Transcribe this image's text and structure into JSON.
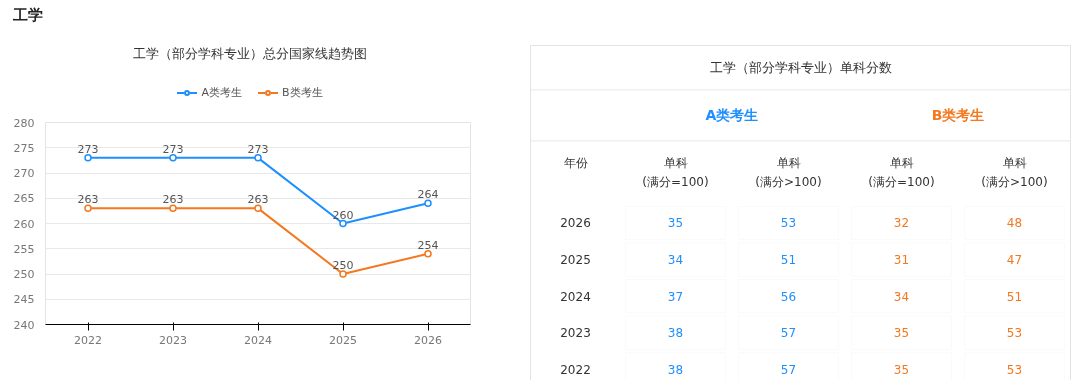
{
  "chart_data": [
    {
      "type": "other",
      "title": "工学"
    },
    {
      "type": "line",
      "title": "工学（部分学科专业）总分国家线趋势图",
      "categories": [
        "2022",
        "2023",
        "2024",
        "2025",
        "2026"
      ],
      "series": [
        {
          "name": "A类考生",
          "color": "#1e8fff",
          "values": [
            273,
            273,
            273,
            260,
            264
          ]
        },
        {
          "name": "B类考生",
          "color": "#f5781f",
          "values": [
            263,
            263,
            263,
            250,
            254
          ]
        }
      ],
      "ylim": [
        240,
        280
      ],
      "yticks": [
        240,
        245,
        250,
        255,
        260,
        265,
        270,
        275,
        280
      ],
      "grid": "y",
      "legend": "top",
      "marker": "circle",
      "line_style": "solid",
      "data_labels": true
    },
    {
      "type": "heatmap",
      "title": "工学（部分学科专业）单科分数",
      "ylabel": "年份",
      "annotations": [
        "A类考生",
        "B类考生"
      ],
      "categories": [
        "单科\n(满分=100)",
        "单科\n(满分>100)",
        "单科\n(满分=100)",
        "单科\n(满分>100)"
      ],
      "colors": [
        "#1e8fff",
        "#1e8fff",
        "#f5781f",
        "#f5781f"
      ],
      "y_categories": [
        "2026",
        "2025",
        "2024",
        "2023",
        "2022"
      ],
      "data_labels": true,
      "cells": [
        [
          35,
          53,
          32,
          48
        ],
        [
          34,
          51,
          31,
          47
        ],
        [
          37,
          56,
          34,
          51
        ],
        [
          38,
          57,
          35,
          53
        ],
        [
          38,
          57,
          35,
          53
        ]
      ]
    }
  ]
}
